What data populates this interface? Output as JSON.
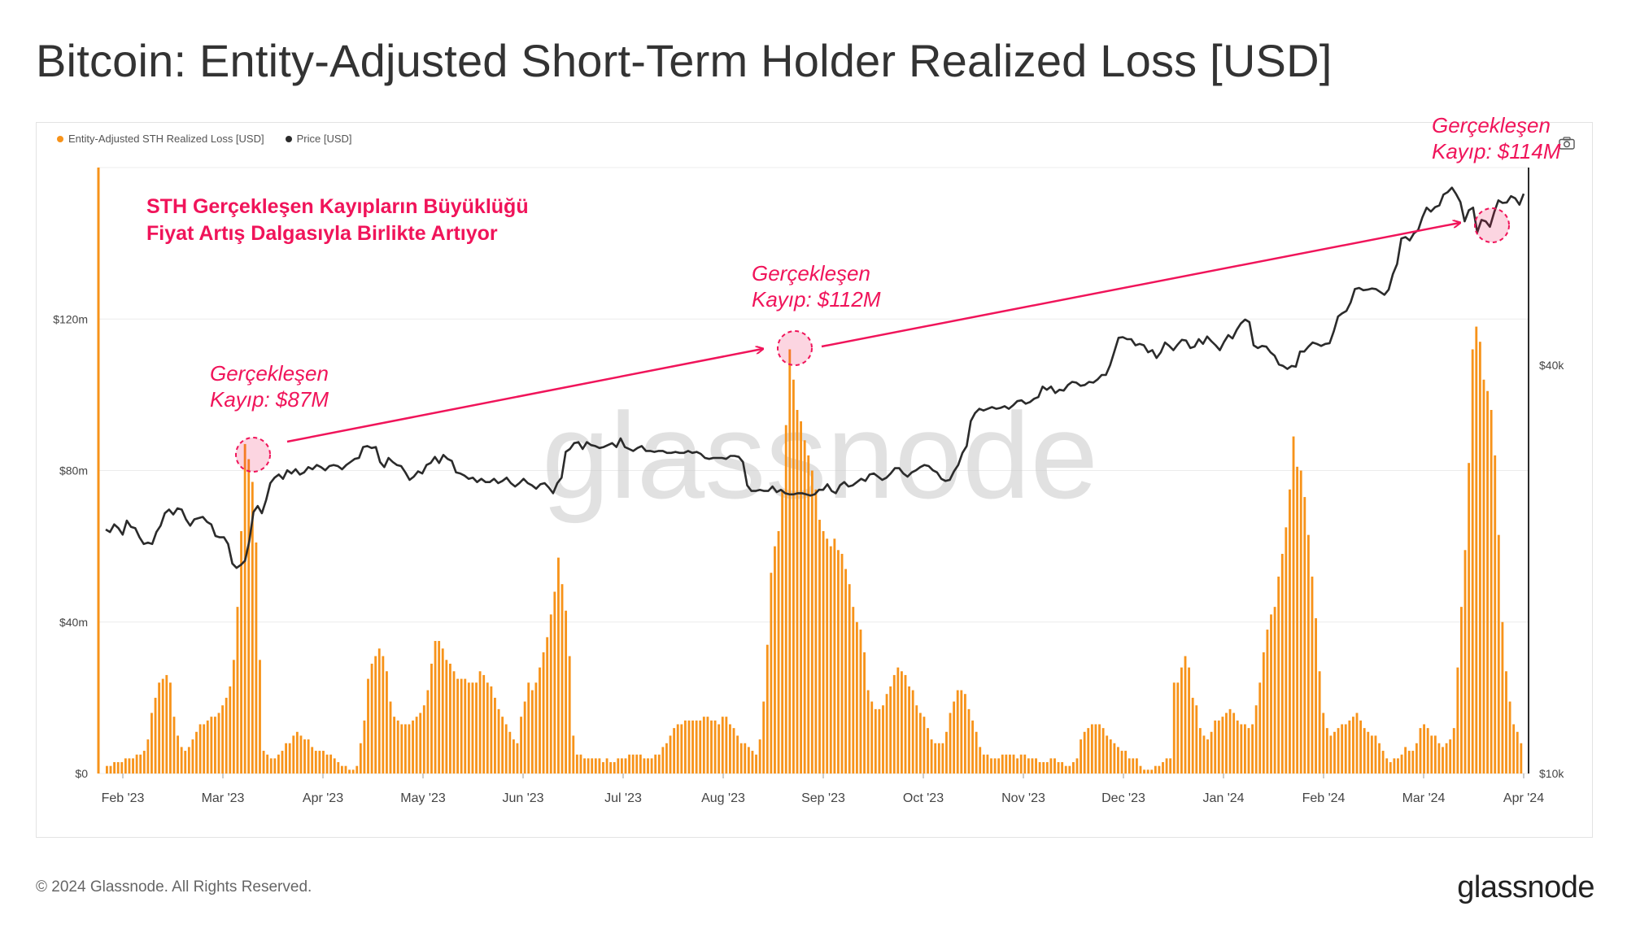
{
  "header": {
    "title": "Bitcoin: Entity-Adjusted Short-Term Holder Realized Loss [USD]"
  },
  "legend": {
    "items": [
      {
        "label": "Entity-Adjusted STH Realized Loss [USD]",
        "color": "#f7931a"
      },
      {
        "label": "Price [USD]",
        "color": "#2b2b2b"
      }
    ]
  },
  "watermark": "glassnode",
  "annotations": {
    "headline_line1": "STH Gerçekleşen Kayıpların Büyüklüğü",
    "headline_line2": "Fiyat Artış Dalgasıyla Birlikte Artıyor",
    "callouts": [
      {
        "line1": "Gerçekleşen",
        "line2": "Kayıp: $87M"
      },
      {
        "line1": "Gerçekleşen",
        "line2": "Kayıp: $112M"
      },
      {
        "line1": "Gerçekleşen",
        "line2": "Kayıp: $114M"
      }
    ],
    "color": "#f0145a"
  },
  "footer": {
    "copyright": "© 2024 Glassnode. All Rights Reserved.",
    "brand": "glassnode"
  },
  "chart_data": {
    "type": "bar",
    "title": "Bitcoin: Entity-Adjusted Short-Term Holder Realized Loss [USD]",
    "x_ticks": [
      "Feb '23",
      "Mar '23",
      "Apr '23",
      "May '23",
      "Jun '23",
      "Jul '23",
      "Aug '23",
      "Sep '23",
      "Oct '23",
      "Nov '23",
      "Dec '23",
      "Jan '24",
      "Feb '24",
      "Mar '24",
      "Apr '24"
    ],
    "y_left": {
      "ticks": [
        "$0",
        "$40m",
        "$80m",
        "$120m"
      ],
      "tick_values": [
        0,
        40,
        80,
        120
      ],
      "unit": "USD millions",
      "range": [
        0,
        160
      ]
    },
    "y_right": {
      "ticks": [
        "$10k",
        "$40k"
      ],
      "tick_values": [
        10000,
        40000
      ],
      "scale": "log"
    },
    "grid": true,
    "legend_position": "top-left",
    "series": [
      {
        "name": "Entity-Adjusted STH Realized Loss [USD]",
        "kind": "bar",
        "color": "#f7931a",
        "unit": "USD millions",
        "values": [
          2,
          2,
          3,
          3,
          3,
          4,
          4,
          4,
          5,
          5,
          6,
          9,
          16,
          20,
          24,
          25,
          26,
          24,
          15,
          10,
          7,
          6,
          7,
          9,
          11,
          13,
          13,
          14,
          15,
          15,
          16,
          18,
          20,
          23,
          30,
          44,
          64,
          87,
          83,
          77,
          61,
          30,
          6,
          5,
          4,
          4,
          5,
          6,
          8,
          8,
          10,
          11,
          10,
          9,
          9,
          7,
          6,
          6,
          6,
          5,
          5,
          4,
          3,
          2,
          2,
          1,
          1,
          2,
          8,
          14,
          25,
          29,
          31,
          33,
          31,
          27,
          19,
          15,
          14,
          13,
          13,
          13,
          14,
          15,
          16,
          18,
          22,
          29,
          35,
          35,
          33,
          30,
          29,
          27,
          25,
          25,
          25,
          24,
          24,
          24,
          27,
          26,
          24,
          23,
          20,
          17,
          15,
          13,
          11,
          9,
          8,
          15,
          19,
          24,
          22,
          24,
          28,
          32,
          36,
          42,
          48,
          57,
          50,
          43,
          31,
          10,
          5,
          5,
          4,
          4,
          4,
          4,
          4,
          3,
          4,
          3,
          3,
          4,
          4,
          4,
          5,
          5,
          5,
          5,
          4,
          4,
          4,
          5,
          5,
          7,
          8,
          10,
          12,
          13,
          13,
          14,
          14,
          14,
          14,
          14,
          15,
          15,
          14,
          14,
          13,
          15,
          15,
          13,
          12,
          10,
          8,
          8,
          7,
          6,
          5,
          9,
          19,
          34,
          53,
          60,
          64,
          75,
          92,
          112,
          104,
          96,
          93,
          88,
          84,
          80,
          75,
          67,
          64,
          62,
          60,
          62,
          59,
          58,
          54,
          50,
          44,
          40,
          38,
          32,
          22,
          19,
          17,
          17,
          18,
          21,
          23,
          26,
          28,
          27,
          26,
          23,
          22,
          18,
          16,
          15,
          12,
          9,
          8,
          8,
          8,
          11,
          16,
          19,
          22,
          22,
          21,
          17,
          14,
          11,
          7,
          5,
          5,
          4,
          4,
          4,
          5,
          5,
          5,
          5,
          4,
          5,
          5,
          4,
          4,
          4,
          3,
          3,
          3,
          4,
          4,
          3,
          3,
          2,
          2,
          3,
          4,
          9,
          11,
          12,
          13,
          13,
          13,
          12,
          10,
          9,
          8,
          7,
          6,
          6,
          4,
          4,
          4,
          2,
          1,
          1,
          1,
          2,
          2,
          3,
          4,
          4,
          24,
          24,
          28,
          31,
          28,
          20,
          18,
          12,
          10,
          9,
          11,
          14,
          14,
          15,
          16,
          17,
          16,
          14,
          13,
          13,
          12,
          13,
          18,
          24,
          32,
          38,
          42,
          44,
          52,
          58,
          65,
          75,
          89,
          81,
          80,
          73,
          63,
          52,
          41,
          27,
          16,
          12,
          10,
          11,
          12,
          13,
          13,
          14,
          15,
          16,
          14,
          12,
          11,
          10,
          10,
          8,
          6,
          4,
          3,
          4,
          4,
          5,
          7,
          6,
          6,
          8,
          12,
          13,
          12,
          10,
          10,
          8,
          7,
          8,
          9,
          12,
          28,
          44,
          59,
          82,
          112,
          118,
          114,
          104,
          101,
          96,
          84,
          63,
          40,
          27,
          19,
          13,
          11,
          8
        ]
      },
      {
        "name": "Price [USD]",
        "kind": "line",
        "color": "#2b2b2b",
        "unit": "USD",
        "values": [
          22900,
          22700,
          23300,
          23000,
          22500,
          23600,
          23100,
          23000,
          22300,
          21800,
          21900,
          21800,
          22700,
          23200,
          24200,
          24500,
          24100,
          24600,
          24500,
          23700,
          23200,
          23700,
          23800,
          23900,
          23500,
          23300,
          22400,
          22300,
          22300,
          21800,
          20400,
          20100,
          20300,
          20600,
          22000,
          24300,
          24800,
          24200,
          25300,
          26800,
          27300,
          27600,
          27200,
          28000,
          27700,
          28100,
          27600,
          27800,
          28300,
          28100,
          28500,
          28300,
          28000,
          28400,
          28500,
          28400,
          28100,
          28500,
          28800,
          29100,
          29200,
          30300,
          30400,
          30200,
          30300,
          28800,
          28300,
          29200,
          28800,
          28500,
          28400,
          27800,
          27100,
          27400,
          27900,
          27700,
          28500,
          28700,
          29300,
          28700,
          29500,
          29100,
          28900,
          27800,
          27700,
          27500,
          27200,
          27300,
          26900,
          27200,
          26900,
          26900,
          27200,
          26800,
          27000,
          27300,
          26800,
          26500,
          26800,
          27200,
          26800,
          26600,
          26300,
          26700,
          26800,
          26400,
          25900,
          26800,
          27300,
          29800,
          30100,
          30700,
          30800,
          30100,
          30800,
          30500,
          30400,
          30200,
          30300,
          30500,
          30700,
          30300,
          31200,
          30300,
          30100,
          29900,
          30200,
          30400,
          29900,
          29900,
          29800,
          29900,
          29900,
          29700,
          29700,
          29800,
          29700,
          29700,
          29900,
          29700,
          29800,
          29600,
          29200,
          29100,
          29200,
          29200,
          29200,
          29100,
          29400,
          29400,
          29300,
          28800,
          26600,
          26100,
          26100,
          26200,
          26100,
          26100,
          26500,
          26000,
          26200,
          25900,
          25800,
          25800,
          25900,
          25900,
          25800,
          25700,
          25800,
          26200,
          26200,
          26700,
          26100,
          25900,
          26600,
          26900,
          26500,
          26600,
          26900,
          27200,
          27000,
          27600,
          27700,
          27400,
          27100,
          27300,
          27700,
          28200,
          28200,
          27700,
          27400,
          27800,
          28000,
          28300,
          28500,
          28400,
          28000,
          27800,
          27200,
          27000,
          27100,
          27900,
          28500,
          29700,
          30400,
          33100,
          34000,
          34500,
          34300,
          34500,
          34700,
          34500,
          34600,
          34800,
          34500,
          34900,
          35400,
          35500,
          35100,
          35300,
          35700,
          35900,
          37200,
          36800,
          37200,
          36400,
          36800,
          36700,
          37400,
          37800,
          37700,
          37300,
          37400,
          37800,
          37700,
          38100,
          38700,
          38700,
          40000,
          41900,
          43900,
          44000,
          43700,
          43700,
          42800,
          43000,
          42800,
          41800,
          42100,
          41000,
          41800,
          43200,
          42700,
          42100,
          42900,
          43600,
          43500,
          42400,
          42600,
          43700,
          43000,
          44100,
          43400,
          42800,
          42100,
          43300,
          44300,
          43800,
          45100,
          46100,
          46700,
          46300,
          42800,
          42400,
          42700,
          42600,
          41800,
          41300,
          40100,
          39900,
          39500,
          39900,
          39800,
          41900,
          41900,
          42600,
          43200,
          43000,
          42700,
          43000,
          43100,
          44900,
          47200,
          47700,
          48100,
          49500,
          51800,
          52000,
          51600,
          51700,
          51900,
          51800,
          51300,
          50800,
          51700,
          54500,
          56400,
          61500,
          61800,
          61100,
          62600,
          63300,
          66100,
          68300,
          67400,
          68400,
          68800,
          71400,
          72000,
          73100,
          71500,
          69600,
          65200,
          67700,
          68300,
          62800,
          65500,
          65200,
          64000,
          67200,
          70000,
          69400,
          69500,
          71000,
          70500,
          69000,
          71600
        ]
      }
    ]
  }
}
